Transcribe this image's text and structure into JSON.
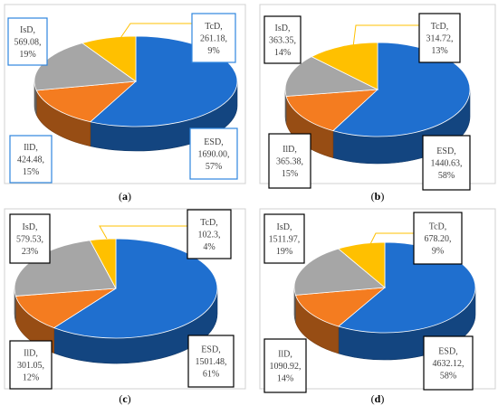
{
  "colors": {
    "ESD": "#1f6fcf",
    "IlD": "#f47c20",
    "IsD": "#a6a6a6",
    "TcD": "#ffc000",
    "leader": "#ffc000"
  },
  "chart_data": [
    {
      "type": "pie",
      "caption": "(a)",
      "label_box_color": "#2e86de",
      "slices": [
        {
          "name": "ESD",
          "value": 1690.0,
          "value_text": "1690.00",
          "percent": "57%"
        },
        {
          "name": "IlD",
          "value": 424.48,
          "value_text": "424.48",
          "percent": "15%"
        },
        {
          "name": "IsD",
          "value": 569.08,
          "value_text": "569.08",
          "percent": "19%"
        },
        {
          "name": "TcD",
          "value": 261.18,
          "value_text": "261.18",
          "percent": "9%"
        }
      ]
    },
    {
      "type": "pie",
      "caption": "(b)",
      "label_box_color": "#000000",
      "slices": [
        {
          "name": "ESD",
          "value": 1440.63,
          "value_text": "1440.63",
          "percent": "58%"
        },
        {
          "name": "IlD",
          "value": 365.38,
          "value_text": "365.38",
          "percent": "15%"
        },
        {
          "name": "IsD",
          "value": 363.35,
          "value_text": "363.35",
          "percent": "14%"
        },
        {
          "name": "TcD",
          "value": 314.72,
          "value_text": "314.72",
          "percent": "13%"
        }
      ]
    },
    {
      "type": "pie",
      "caption": "(c)",
      "label_box_color": "#000000",
      "slices": [
        {
          "name": "ESD",
          "value": 1501.48,
          "value_text": "1501.48",
          "percent": "61%"
        },
        {
          "name": "IlD",
          "value": 301.05,
          "value_text": "301.05",
          "percent": "12%"
        },
        {
          "name": "IsD",
          "value": 579.53,
          "value_text": "579.53",
          "percent": "23%"
        },
        {
          "name": "TcD",
          "value": 102.3,
          "value_text": "102.3",
          "percent": "4%"
        }
      ]
    },
    {
      "type": "pie",
      "caption": "(d)",
      "label_box_color": "#000000",
      "slices": [
        {
          "name": "ESD",
          "value": 4632.12,
          "value_text": "4632.12",
          "percent": "58%"
        },
        {
          "name": "IlD",
          "value": 1090.92,
          "value_text": "1090.92",
          "percent": "14%"
        },
        {
          "name": "IsD",
          "value": 1511.97,
          "value_text": "1511.97",
          "percent": "19%"
        },
        {
          "name": "TcD",
          "value": 678.2,
          "value_text": "678.20",
          "percent": "9%"
        }
      ]
    }
  ]
}
